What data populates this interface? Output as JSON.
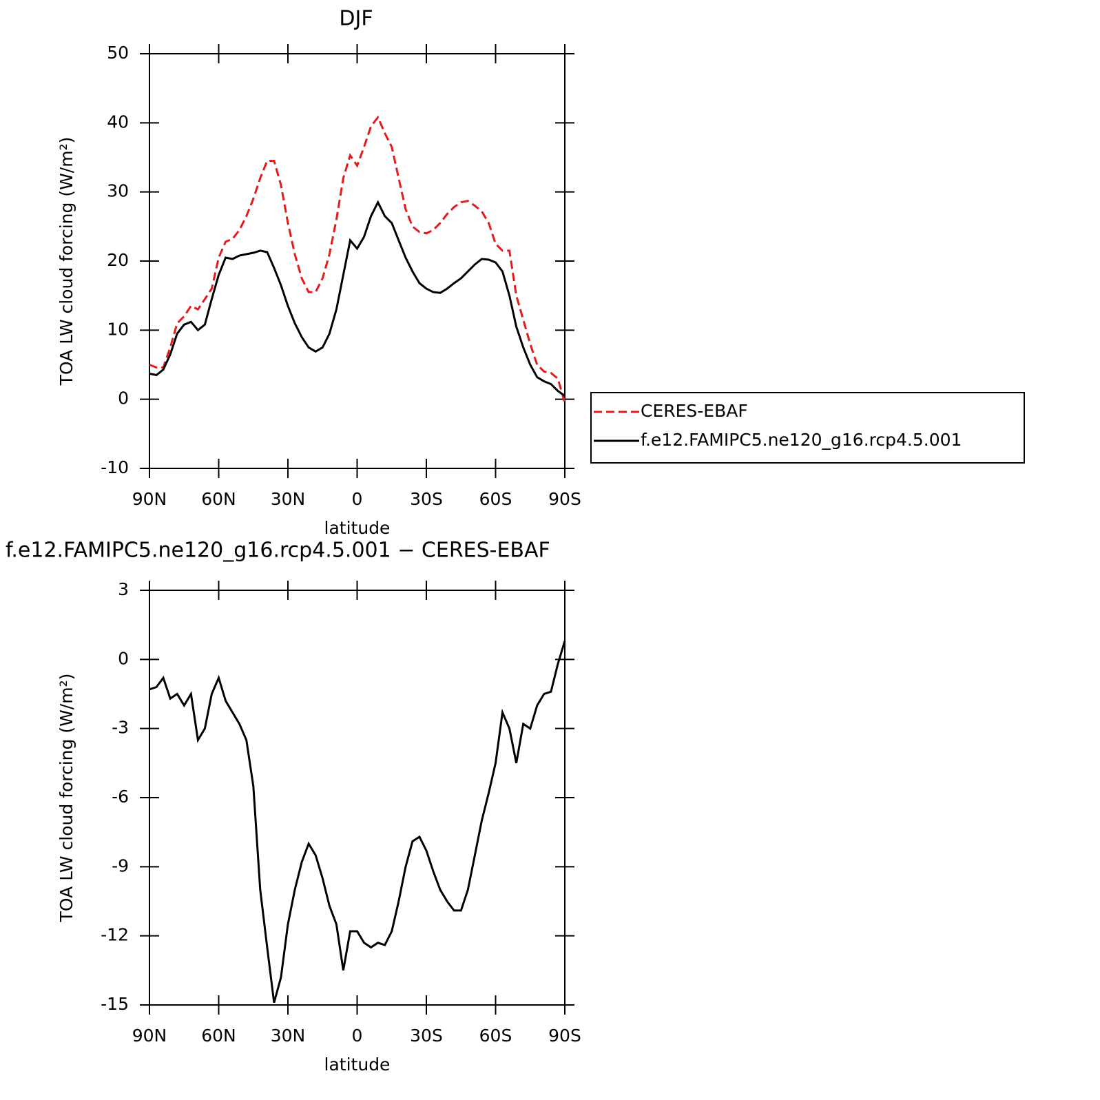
{
  "chart_data": [
    {
      "type": "line",
      "title": "DJF",
      "x_label": "latitude",
      "y_label": "TOA LW cloud forcing (W/m²)",
      "x": [
        90,
        87,
        84,
        81,
        78,
        75,
        72,
        69,
        66,
        63,
        60,
        57,
        54,
        51,
        48,
        45,
        42,
        39,
        36,
        33,
        30,
        27,
        24,
        21,
        18,
        15,
        12,
        9,
        6,
        3,
        0,
        -3,
        -6,
        -9,
        -12,
        -15,
        -18,
        -21,
        -24,
        -27,
        -30,
        -33,
        -36,
        -39,
        -42,
        -45,
        -48,
        -51,
        -54,
        -57,
        -60,
        -63,
        -66,
        -69,
        -72,
        -75,
        -78,
        -81,
        -84,
        -87,
        -90
      ],
      "series": [
        {
          "name": "CERES-EBAF",
          "color": "#e41a1c",
          "dash": true,
          "values": [
            5.0,
            4.6,
            4.6,
            7.5,
            11.0,
            12.0,
            13.5,
            13.0,
            14.5,
            16.0,
            20.5,
            22.8,
            23.2,
            24.5,
            26.5,
            29.0,
            32.0,
            34.5,
            34.5,
            31.0,
            25.5,
            21.0,
            17.5,
            15.5,
            15.5,
            17.5,
            21.0,
            26.0,
            32.0,
            35.3,
            33.8,
            36.5,
            39.5,
            40.8,
            38.5,
            36.5,
            32.0,
            27.5,
            25.0,
            24.2,
            24.0,
            24.5,
            25.5,
            26.8,
            27.8,
            28.5,
            28.7,
            28.0,
            27.2,
            25.5,
            22.5,
            21.5,
            21.5,
            15.0,
            11.5,
            8.0,
            5.0,
            4.0,
            3.8,
            3.0,
            -0.5
          ]
        },
        {
          "name": "f.e12.FAMIPC5.ne120_g16.rcp4.5.001",
          "color": "#000000",
          "dash": false,
          "values": [
            3.7,
            3.5,
            4.3,
            6.5,
            9.5,
            10.8,
            11.2,
            10.0,
            10.8,
            14.5,
            18.0,
            20.5,
            20.3,
            20.8,
            21.0,
            21.2,
            21.5,
            21.3,
            19.0,
            16.5,
            13.5,
            11.0,
            9.0,
            7.5,
            6.9,
            7.5,
            9.5,
            13.0,
            18.0,
            23.0,
            21.8,
            23.5,
            26.5,
            28.5,
            26.5,
            25.5,
            23.0,
            20.5,
            18.5,
            16.8,
            16.0,
            15.5,
            15.4,
            16.0,
            16.8,
            17.5,
            18.5,
            19.5,
            20.3,
            20.2,
            19.8,
            18.5,
            15.0,
            10.5,
            7.5,
            5.0,
            3.2,
            2.6,
            2.2,
            1.2,
            0.5
          ]
        }
      ],
      "xlim": [
        90,
        -90
      ],
      "xticks": [
        {
          "value": 90,
          "label": "90N"
        },
        {
          "value": 60,
          "label": "60N"
        },
        {
          "value": 30,
          "label": "30N"
        },
        0,
        {
          "value": -30,
          "label": "30S"
        },
        {
          "value": -60,
          "label": "60S"
        },
        {
          "value": -90,
          "label": "90S"
        }
      ],
      "ylim": [
        -10,
        50
      ],
      "yticks": [
        -10,
        0,
        10,
        20,
        30,
        40,
        50
      ],
      "legend": "outside-right"
    },
    {
      "type": "line",
      "title": "f.e12.FAMIPC5.ne120_g16.rcp4.5.001 − CERES-EBAF",
      "x_label": "latitude",
      "y_label": "TOA LW cloud forcing (W/m²)",
      "x": [
        90,
        87,
        84,
        81,
        78,
        75,
        72,
        69,
        66,
        63,
        60,
        57,
        54,
        51,
        48,
        45,
        42,
        39,
        36,
        33,
        30,
        27,
        24,
        21,
        18,
        15,
        12,
        9,
        6,
        3,
        0,
        -3,
        -6,
        -9,
        -12,
        -15,
        -18,
        -21,
        -24,
        -27,
        -30,
        -33,
        -36,
        -39,
        -42,
        -45,
        -48,
        -51,
        -54,
        -57,
        -60,
        -63,
        -66,
        -69,
        -72,
        -75,
        -78,
        -81,
        -84,
        -87,
        -90
      ],
      "color": "#000000",
      "values": [
        -1.3,
        -1.2,
        -0.8,
        -1.7,
        -1.5,
        -2.0,
        -1.5,
        -3.5,
        -3.0,
        -1.5,
        -0.8,
        -1.8,
        -2.3,
        -2.8,
        -3.5,
        -5.5,
        -10.0,
        -12.5,
        -14.9,
        -13.8,
        -11.5,
        -10.0,
        -8.8,
        -8.0,
        -8.5,
        -9.5,
        -10.7,
        -11.5,
        -13.5,
        -11.8,
        -11.8,
        -12.3,
        -12.5,
        -12.3,
        -12.4,
        -11.8,
        -10.5,
        -9.0,
        -7.9,
        -7.7,
        -8.3,
        -9.2,
        -10.0,
        -10.5,
        -10.9,
        -10.9,
        -10.0,
        -8.5,
        -7.0,
        -5.8,
        -4.5,
        -2.3,
        -3.0,
        -4.5,
        -2.8,
        -3.0,
        -2.0,
        -1.5,
        -1.4,
        -0.2,
        0.8
      ],
      "xlim": [
        90,
        -90
      ],
      "xticks": [
        {
          "value": 90,
          "label": "90N"
        },
        {
          "value": 60,
          "label": "60N"
        },
        {
          "value": 30,
          "label": "30N"
        },
        0,
        {
          "value": -30,
          "label": "30S"
        },
        {
          "value": -60,
          "label": "60S"
        },
        {
          "value": -90,
          "label": "90S"
        }
      ],
      "ylim": [
        -15,
        3
      ],
      "yticks": [
        -15,
        -12,
        -9,
        -6,
        -3,
        0,
        3
      ]
    }
  ]
}
